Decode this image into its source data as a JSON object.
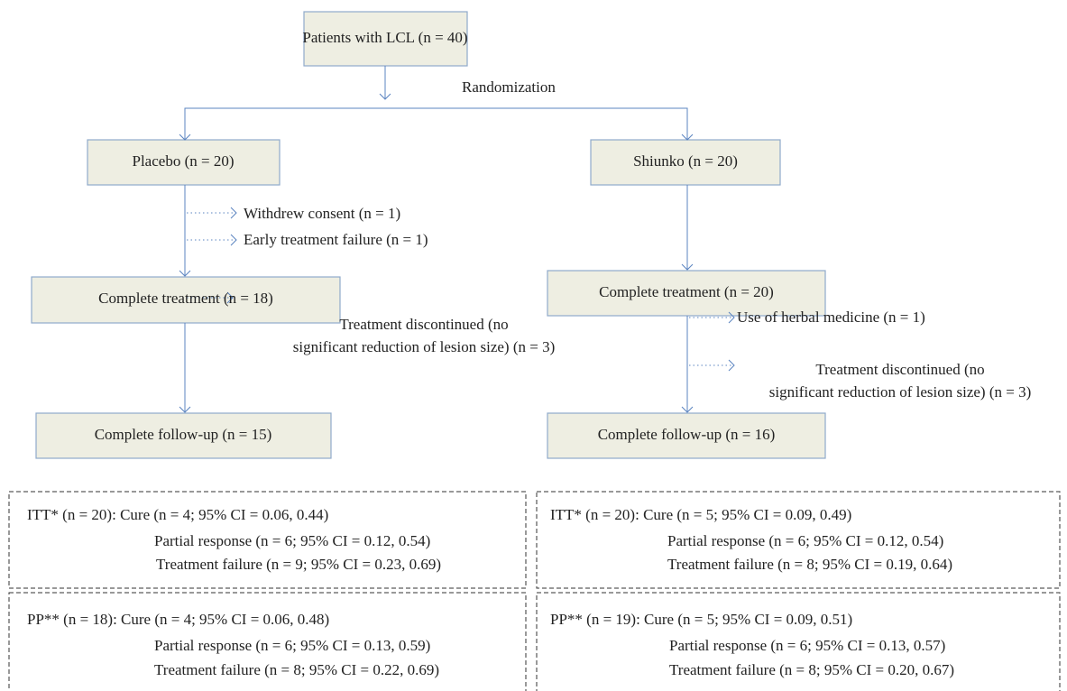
{
  "nodes": [
    {
      "label": "Patients with LCL (n = 40)"
    },
    {
      "label": "Placebo (n = 20)"
    },
    {
      "label": "Shiunko (n = 20)"
    },
    {
      "label": "Complete treatment (n = 18)"
    },
    {
      "label": "Complete treatment (n = 20)"
    },
    {
      "label": "Complete follow-up (n = 15)"
    },
    {
      "label": "Complete follow-up (n = 16)"
    }
  ],
  "edge_label": "Randomization",
  "exclusions": [
    {
      "lines": [
        "Withdrew consent (n = 1)"
      ]
    },
    {
      "lines": [
        "Early treatment failure (n = 1)"
      ]
    },
    {
      "lines": [
        "Treatment discontinued (no",
        "significant reduction of lesion size) (n = 3)"
      ]
    },
    {
      "lines": [
        "Use of herbal medicine (n = 1)"
      ]
    },
    {
      "lines": [
        "Treatment discontinued (no",
        "significant reduction of lesion size) (n = 3)"
      ]
    }
  ],
  "results": [
    {
      "lines": [
        "ITT* (n = 20): Cure (n = 4; 95% CI = 0.06, 0.44)",
        "Partial response (n = 6; 95% CI = 0.12, 0.54)",
        "Treatment failure (n = 9; 95% CI = 0.23, 0.69)"
      ]
    },
    {
      "lines": [
        "ITT* (n = 20): Cure (n = 5; 95% CI = 0.09, 0.49)",
        "Partial response (n = 6; 95% CI = 0.12, 0.54)",
        "Treatment failure (n = 8; 95% CI = 0.19, 0.64)"
      ]
    },
    {
      "lines": [
        "PP** (n = 18): Cure (n = 4; 95% CI = 0.06, 0.48)",
        "Partial response (n = 6; 95% CI = 0.13, 0.59)",
        "Treatment failure (n = 8; 95% CI = 0.22, 0.69)"
      ]
    },
    {
      "lines": [
        "PP** (n = 19): Cure (n = 5; 95% CI = 0.09, 0.51)",
        "Partial response (n = 6; 95% CI = 0.13, 0.57)",
        "Treatment failure (n = 8; 95% CI = 0.20, 0.67)"
      ]
    }
  ]
}
